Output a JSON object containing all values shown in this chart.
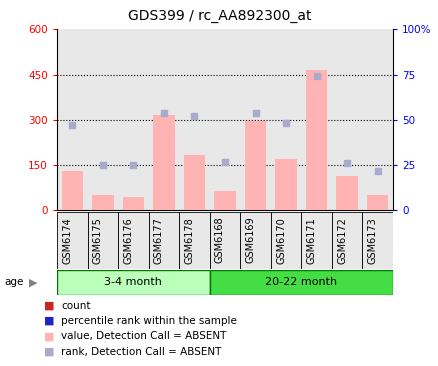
{
  "title": "GDS399 / rc_AA892300_at",
  "samples": [
    "GSM6174",
    "GSM6175",
    "GSM6176",
    "GSM6177",
    "GSM6178",
    "GSM6168",
    "GSM6169",
    "GSM6170",
    "GSM6171",
    "GSM6172",
    "GSM6173"
  ],
  "bar_values": [
    130,
    50,
    45,
    315,
    185,
    65,
    295,
    170,
    465,
    115,
    50
  ],
  "rank_values": [
    47,
    25,
    25,
    54,
    52,
    27,
    54,
    48,
    74,
    26,
    22
  ],
  "groups": [
    {
      "label": "3-4 month",
      "start": 0,
      "end": 5
    },
    {
      "label": "20-22 month",
      "start": 5,
      "end": 11
    }
  ],
  "ylim_left": [
    0,
    600
  ],
  "ylim_right": [
    0,
    100
  ],
  "yticks_left": [
    0,
    150,
    300,
    450,
    600
  ],
  "yticks_right": [
    0,
    25,
    50,
    75,
    100
  ],
  "ytick_labels_right": [
    "0",
    "25",
    "50",
    "75",
    "100%"
  ],
  "bar_color": "#FFB3B3",
  "rank_color": "#AAAACC",
  "bg_color_plot": "#E8E8E8",
  "group_bg_light": "#BBFFBB",
  "group_bg_dark": "#44DD44",
  "title_fontsize": 10,
  "tick_fontsize": 7.5,
  "xtick_fontsize": 7,
  "legend_fontsize": 7.5
}
